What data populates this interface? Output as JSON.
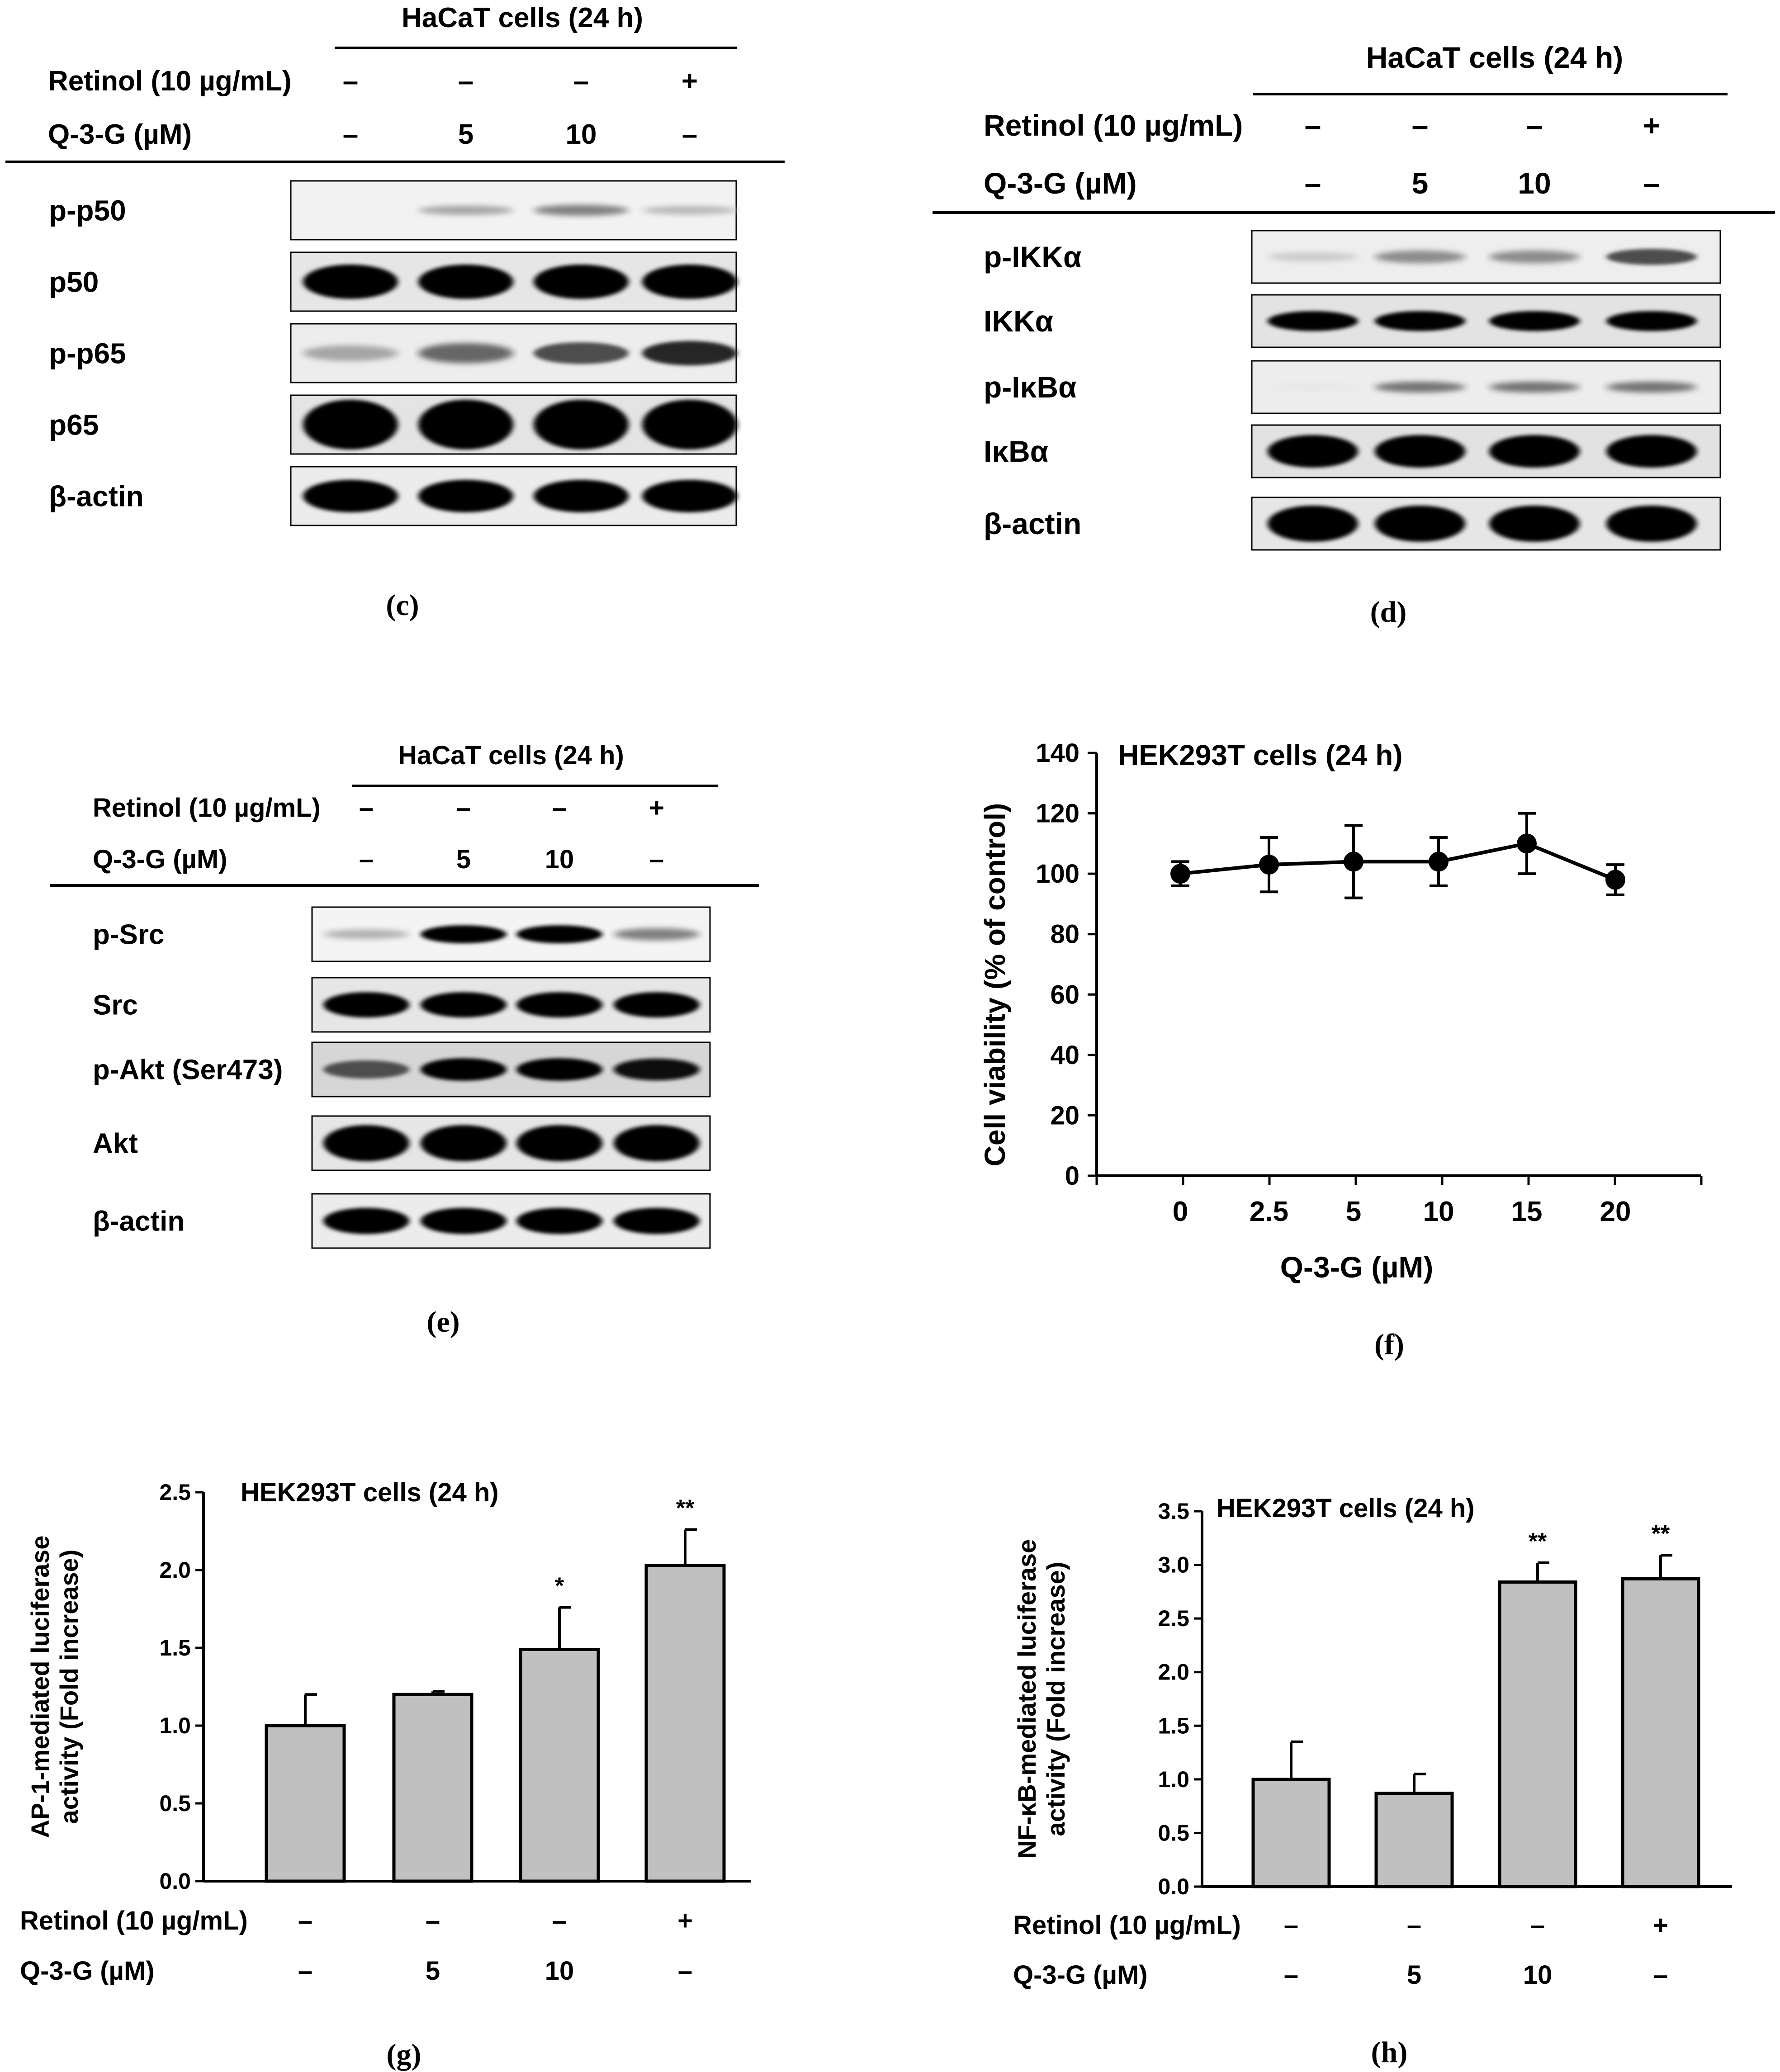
{
  "blot_c": {
    "header": "HaCaT cells (24 h)",
    "retinol_label": "Retinol (10 µg/mL)",
    "q3g_label": "Q-3-G (µM)",
    "retinol": [
      "–",
      "–",
      "–",
      "+"
    ],
    "q3g": [
      "–",
      "5",
      "10",
      "–"
    ],
    "bands": [
      "p-p50",
      "p50",
      "p-p65",
      "p65",
      "β-actin"
    ],
    "caption": "(c)"
  },
  "blot_d": {
    "header": "HaCaT cells (24 h)",
    "retinol_label": "Retinol (10 µg/mL)",
    "q3g_label": "Q-3-G (µM)",
    "retinol": [
      "–",
      "–",
      "–",
      "+"
    ],
    "q3g": [
      "–",
      "5",
      "10",
      "–"
    ],
    "bands": [
      "p-IKKα",
      "IKKα",
      "p-IκBα",
      "IκBα",
      "β-actin"
    ],
    "caption": "(d)"
  },
  "blot_e": {
    "header": "HaCaT cells (24 h)",
    "retinol_label": "Retinol (10 µg/mL)",
    "q3g_label": "Q-3-G (µM)",
    "retinol": [
      "–",
      "–",
      "–",
      "+"
    ],
    "q3g": [
      "–",
      "5",
      "10",
      "–"
    ],
    "bands": [
      "p-Src",
      "Src",
      "p-Akt (Ser473)",
      "Akt",
      "β-actin"
    ],
    "caption": "(e)"
  },
  "chart_data": [
    {
      "type": "line",
      "panel": "f",
      "title": "HEK293T cells (24 h)",
      "xlabel": "Q-3-G (µM)",
      "ylabel": "Cell viability (% of control)",
      "categories": [
        "0",
        "2.5",
        "5",
        "10",
        "15",
        "20"
      ],
      "values": [
        100,
        103,
        104,
        104,
        110,
        98
      ],
      "errors": [
        4,
        9,
        12,
        8,
        10,
        5
      ],
      "yticks": [
        "0",
        "20",
        "40",
        "60",
        "80",
        "100",
        "120",
        "140"
      ],
      "ylim": [
        0,
        140
      ],
      "caption": "(f)"
    },
    {
      "type": "bar",
      "panel": "g",
      "title": "HEK293T cells (24 h)",
      "ylabel": "AP-1-mediated luciferase activity (Fold increase)",
      "ylabel_lines": [
        "AP-1-mediated luciferase",
        "activity (Fold increase)"
      ],
      "values": [
        1.0,
        1.2,
        1.49,
        2.03
      ],
      "errors": [
        0.2,
        0.02,
        0.27,
        0.23
      ],
      "significance": [
        "",
        "",
        "*",
        "**"
      ],
      "yticks": [
        "0.0",
        "0.5",
        "1.0",
        "1.5",
        "2.0",
        "2.5"
      ],
      "ylim": [
        0,
        2.5
      ],
      "retinol_label": "Retinol (10 µg/mL)",
      "q3g_label": "Q-3-G (µM)",
      "retinol": [
        "–",
        "–",
        "–",
        "+"
      ],
      "q3g": [
        "–",
        "5",
        "10",
        "–"
      ],
      "caption": "(g)"
    },
    {
      "type": "bar",
      "panel": "h",
      "title": "HEK293T cells (24 h)",
      "ylabel": "NF-κB-mediated luciferase activity (Fold increase)",
      "ylabel_lines": [
        "NF-κB-mediated luciferase",
        "activity (Fold increase)"
      ],
      "values": [
        1.0,
        0.87,
        2.84,
        2.87
      ],
      "errors": [
        0.35,
        0.18,
        0.18,
        0.22
      ],
      "significance": [
        "",
        "",
        "**",
        "**"
      ],
      "yticks": [
        "0.0",
        "0.5",
        "1.0",
        "1.5",
        "2.0",
        "2.5",
        "3.0",
        "3.5"
      ],
      "ylim": [
        0,
        3.5
      ],
      "retinol_label": "Retinol (10 µg/mL)",
      "q3g_label": "Q-3-G (µM)",
      "retinol": [
        "–",
        "–",
        "–",
        "+"
      ],
      "q3g": [
        "–",
        "5",
        "10",
        "–"
      ],
      "caption": "(h)"
    }
  ]
}
